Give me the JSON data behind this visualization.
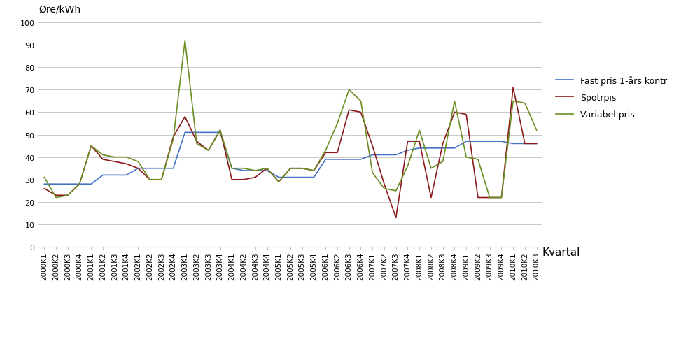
{
  "labels": [
    "2000K1",
    "2000K2",
    "2000K3",
    "2000K4",
    "2001K1",
    "2001K2",
    "2001K3",
    "2001K4",
    "2002K1",
    "2002K2",
    "2002K3",
    "2002K4",
    "2003K1",
    "2003K2",
    "2003K3",
    "2003K4",
    "2004K1",
    "2004K2",
    "2004K3",
    "2004K4",
    "2005K1",
    "2005K2",
    "2005K3",
    "2005K4",
    "2006K1",
    "2006K2",
    "2006K3",
    "2006K4",
    "2007K1",
    "2007K2",
    "2007K3",
    "2007K4",
    "2008K1",
    "2008K2",
    "2008K3",
    "2008K4",
    "2009K1",
    "2009K2",
    "2009K3",
    "2009K4",
    "2010K1",
    "2010K2",
    "2010K3"
  ],
  "fast_pris": [
    28,
    28,
    28,
    28,
    28,
    32,
    32,
    32,
    35,
    35,
    35,
    35,
    51,
    51,
    51,
    51,
    35,
    34,
    34,
    34,
    31,
    31,
    31,
    31,
    39,
    39,
    39,
    39,
    41,
    41,
    41,
    43,
    44,
    44,
    44,
    44,
    47,
    47,
    47,
    47,
    46,
    46,
    46
  ],
  "spotrpis": [
    26,
    23,
    23,
    28,
    45,
    39,
    38,
    37,
    35,
    30,
    30,
    49,
    58,
    47,
    43,
    52,
    30,
    30,
    31,
    35,
    29,
    35,
    35,
    34,
    42,
    42,
    61,
    60,
    45,
    28,
    13,
    47,
    47,
    22,
    46,
    60,
    59,
    22,
    22,
    22,
    71,
    46,
    46
  ],
  "variabel_pris": [
    31,
    22,
    23,
    28,
    45,
    41,
    40,
    40,
    38,
    30,
    30,
    48,
    92,
    46,
    43,
    52,
    35,
    35,
    34,
    35,
    29,
    35,
    35,
    34,
    43,
    55,
    70,
    65,
    33,
    26,
    25,
    36,
    52,
    35,
    38,
    65,
    40,
    39,
    22,
    22,
    65,
    64,
    52
  ],
  "fast_color": "#4472C4",
  "spot_color": "#8B1A1A",
  "variabel_color": "#6B8E23",
  "ylabel": "Øre/kWh",
  "xlabel": "Kvartal",
  "ylim": [
    0,
    100
  ],
  "yticks": [
    0,
    10,
    20,
    30,
    40,
    50,
    60,
    70,
    80,
    90,
    100
  ],
  "legend_fast": "Fast pris 1-års kontr",
  "legend_spot": "Spotrpis",
  "legend_variabel": "Variabel pris",
  "bg_color": "#ffffff",
  "plot_bg_color": "#ffffff",
  "grid_color": "#c8c8c8",
  "line_width": 1.2,
  "tick_fontsize": 7.5,
  "ylabel_fontsize": 10,
  "xlabel_fontsize": 11,
  "legend_fontsize": 9
}
